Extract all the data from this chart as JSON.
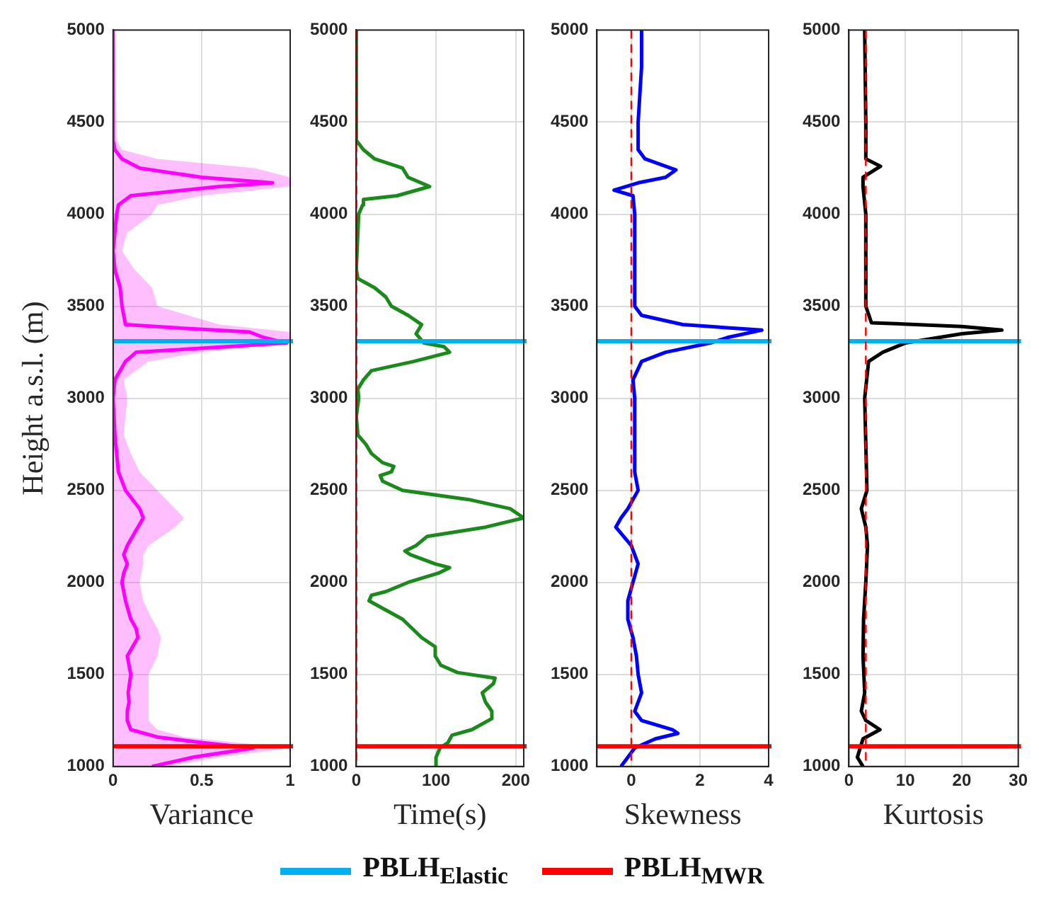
{
  "chart_data": [
    {
      "type": "line",
      "orientation": "horizontal",
      "ylabel": "Height a.s.l. (m)",
      "xlabel": "Variance",
      "xlim": [
        0,
        1
      ],
      "xticks": [
        0,
        0.5,
        1
      ],
      "ylim": [
        1000,
        5000
      ],
      "yticks": [
        1000,
        1500,
        2000,
        2500,
        3000,
        3500,
        4000,
        4500,
        5000
      ],
      "grid": true,
      "legend": "bottom",
      "series": [
        {
          "color": "#ff00ff",
          "x": [
            1000,
            1050,
            1100,
            1130,
            1160,
            1200,
            1250,
            1300,
            1350,
            1400,
            1500,
            1600,
            1700,
            1750,
            1800,
            1900,
            2000,
            2050,
            2100,
            2150,
            2200,
            2300,
            2350,
            2400,
            2500,
            2600,
            2700,
            2800,
            3000,
            3100,
            3200,
            3250,
            3300,
            3330,
            3360,
            3380,
            3400,
            3500,
            3600,
            3700,
            3800,
            3900,
            4000,
            4050,
            4100,
            4150,
            4170,
            4200,
            4250,
            4300,
            4350,
            4400,
            5000
          ],
          "values": [
            0.22,
            0.45,
            0.79,
            0.5,
            0.25,
            0.1,
            0.08,
            0.08,
            0.09,
            0.085,
            0.1,
            0.08,
            0.14,
            0.13,
            0.1,
            0.07,
            0.05,
            0.06,
            0.08,
            0.06,
            0.08,
            0.14,
            0.17,
            0.15,
            0.07,
            0.03,
            0.02,
            0.01,
            0,
            0.01,
            0.07,
            0.13,
            0.98,
            0.85,
            0.77,
            0.4,
            0.07,
            0.05,
            0.04,
            0.01,
            0,
            0.01,
            0.02,
            0.03,
            0.1,
            0.6,
            0.9,
            0.5,
            0.15,
            0.05,
            0.01,
            0,
            0
          ],
          "lower": [
            0,
            0,
            0,
            0,
            0,
            0,
            0,
            0,
            0,
            0,
            0,
            0,
            0,
            0,
            0,
            0,
            0,
            0,
            0,
            0,
            0,
            0,
            0,
            0,
            0,
            0,
            0,
            0,
            0,
            0,
            0,
            0,
            0,
            0,
            0,
            0,
            0,
            0,
            0,
            0,
            0,
            0,
            0,
            0,
            0,
            0,
            0,
            0,
            0,
            0,
            0,
            0,
            0
          ],
          "upper": [
            0.3,
            0.6,
            1,
            0.7,
            0.4,
            0.25,
            0.2,
            0.2,
            0.2,
            0.2,
            0.2,
            0.25,
            0.27,
            0.25,
            0.22,
            0.17,
            0.15,
            0.16,
            0.17,
            0.17,
            0.2,
            0.35,
            0.4,
            0.35,
            0.25,
            0.15,
            0.1,
            0.06,
            0.08,
            0.06,
            0.2,
            0.5,
            1,
            1,
            1,
            0.8,
            0.6,
            0.25,
            0.22,
            0.12,
            0.05,
            0.08,
            0.22,
            0.25,
            0.5,
            1,
            1,
            1,
            0.8,
            0.25,
            0.05,
            0.02,
            0.01
          ]
        }
      ],
      "ref_lines": [
        {
          "axis": "y",
          "value": 3310,
          "label": "PBLH$_{Elastic}$",
          "color": "#00b0f0"
        },
        {
          "axis": "y",
          "value": 1110,
          "label": "PBLH$_{MWR}$",
          "color": "#ff0000"
        }
      ]
    },
    {
      "type": "line",
      "orientation": "horizontal",
      "xlabel": "Time(s)",
      "xlim": [
        0,
        210
      ],
      "xticks": [
        0,
        100,
        200
      ],
      "ylim": [
        1000,
        5000
      ],
      "yticks": [
        1000,
        1500,
        2000,
        2500,
        3000,
        3500,
        4000,
        4500,
        5000
      ],
      "grid": true,
      "series": [
        {
          "color": "#1a8a1a",
          "x": [
            1000,
            1050,
            1100,
            1130,
            1170,
            1200,
            1260,
            1300,
            1350,
            1400,
            1450,
            1480,
            1510,
            1550,
            1600,
            1650,
            1700,
            1800,
            1850,
            1900,
            1930,
            1950,
            2000,
            2050,
            2080,
            2100,
            2150,
            2170,
            2200,
            2250,
            2300,
            2350,
            2400,
            2450,
            2500,
            2550,
            2580,
            2600,
            2630,
            2650,
            2700,
            2750,
            2800,
            2900,
            3000,
            3050,
            3100,
            3150,
            3200,
            3250,
            3280,
            3300,
            3350,
            3400,
            3450,
            3500,
            3550,
            3600,
            3650,
            3700,
            4000,
            4050,
            4080,
            4100,
            4150,
            4200,
            4250,
            4280,
            4300,
            4350,
            4400,
            5000
          ],
          "values": [
            100,
            100,
            105,
            115,
            120,
            145,
            170,
            170,
            162,
            158,
            172,
            174,
            127,
            106,
            99,
            99,
            82,
            58,
            37,
            16,
            19,
            37,
            65,
            103,
            117,
            99,
            68,
            61,
            75,
            89,
            162,
            210,
            193,
            141,
            58,
            33,
            30,
            44,
            47,
            33,
            19,
            12,
            2,
            0,
            3,
            2,
            9,
            19,
            72,
            117,
            110,
            85,
            75,
            82,
            65,
            44,
            37,
            23,
            2,
            0,
            3,
            8,
            9,
            51,
            92,
            65,
            58,
            37,
            23,
            9,
            0,
            0
          ]
        }
      ],
      "ref_lines": [
        {
          "axis": "y",
          "value": 3310,
          "color": "#00b0f0"
        },
        {
          "axis": "y",
          "value": 1110,
          "color": "#ff0000"
        },
        {
          "axis": "x",
          "value": 0,
          "color": "#ff0000",
          "line_style": "dashed"
        }
      ]
    },
    {
      "type": "line",
      "orientation": "horizontal",
      "xlabel": "Skewness",
      "xlim": [
        -1,
        4
      ],
      "xticks": [
        0,
        2,
        4
      ],
      "ylim": [
        1000,
        5000
      ],
      "yticks": [
        1000,
        1500,
        2000,
        2500,
        3000,
        3500,
        4000,
        4500,
        5000
      ],
      "grid": true,
      "series": [
        {
          "color": "#0000ff",
          "x": [
            1000,
            1050,
            1100,
            1150,
            1180,
            1200,
            1250,
            1300,
            1400,
            1500,
            1600,
            1700,
            1800,
            1900,
            2000,
            2100,
            2200,
            2300,
            2350,
            2400,
            2500,
            2600,
            2800,
            3000,
            3100,
            3200,
            3250,
            3300,
            3330,
            3370,
            3400,
            3450,
            3500,
            3800,
            4000,
            4100,
            4130,
            4170,
            4200,
            4240,
            4300,
            4350,
            4500,
            4800,
            5000
          ],
          "values": [
            -0.3,
            -0.1,
            0.1,
            0.7,
            1.36,
            1.2,
            0.3,
            0.1,
            0.3,
            0.2,
            0.15,
            0.05,
            -0.1,
            -0.1,
            0.05,
            0.2,
            0,
            -0.45,
            -0.3,
            -0.1,
            0.2,
            0.1,
            0.1,
            0.1,
            0.05,
            0.3,
            1,
            2.3,
            2.8,
            3.8,
            1.5,
            0.3,
            0.1,
            0.1,
            0.1,
            0.05,
            -0.5,
            0.2,
            1,
            1.3,
            0.4,
            0.2,
            0.2,
            0.3,
            0.3
          ]
        }
      ],
      "ref_lines": [
        {
          "axis": "y",
          "value": 3310,
          "color": "#00b0f0"
        },
        {
          "axis": "y",
          "value": 1110,
          "color": "#ff0000"
        },
        {
          "axis": "x",
          "value": 0,
          "color": "#ff0000",
          "line_style": "dashed"
        }
      ]
    },
    {
      "type": "line",
      "orientation": "horizontal",
      "xlabel": "Kurtosis",
      "xlim": [
        0,
        30
      ],
      "xticks": [
        0,
        10,
        20,
        30
      ],
      "ylim": [
        1000,
        5000
      ],
      "yticks": [
        1000,
        1500,
        2000,
        2500,
        3000,
        3500,
        4000,
        4500,
        5000
      ],
      "grid": true,
      "series": [
        {
          "color": "#000000",
          "x": [
            1000,
            1050,
            1100,
            1150,
            1200,
            1250,
            1300,
            1400,
            1600,
            1800,
            2000,
            2200,
            2300,
            2400,
            2500,
            3000,
            3200,
            3250,
            3300,
            3350,
            3370,
            3390,
            3410,
            3500,
            4000,
            4150,
            4200,
            4260,
            4300,
            4500,
            5000
          ],
          "values": [
            2.5,
            1.5,
            2,
            2.5,
            5.5,
            3,
            2.2,
            2.8,
            2.5,
            2.6,
            3,
            3.3,
            3,
            2.2,
            3.2,
            2.8,
            3.5,
            6,
            10,
            20,
            27.1,
            20,
            4,
            3,
            3,
            2.5,
            2.5,
            5.6,
            3,
            3,
            2.8
          ]
        }
      ],
      "ref_lines": [
        {
          "axis": "y",
          "value": 3310,
          "color": "#00b0f0"
        },
        {
          "axis": "y",
          "value": 1110,
          "color": "#ff0000"
        },
        {
          "axis": "x",
          "value": 3,
          "color": "#ff0000",
          "line_style": "dashed"
        }
      ]
    }
  ]
}
